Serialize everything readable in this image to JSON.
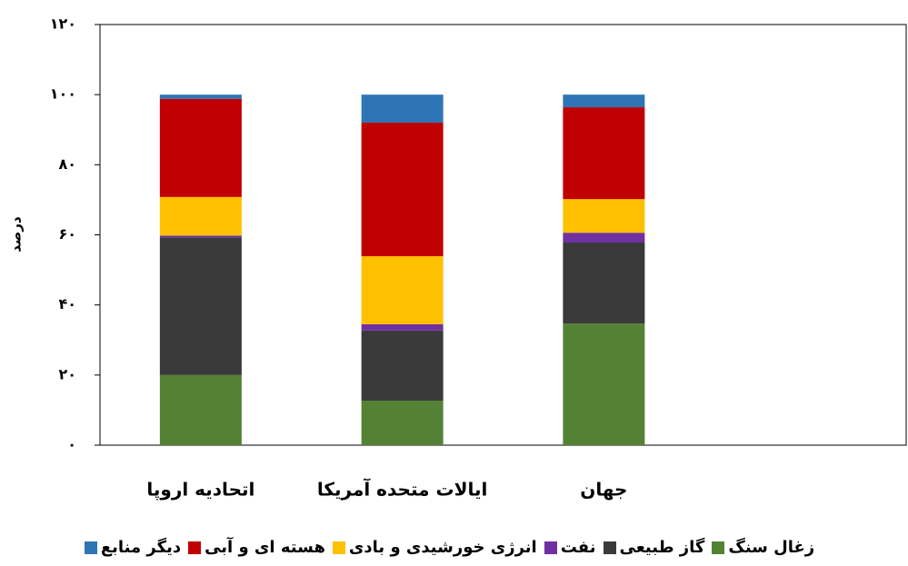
{
  "chart_data": {
    "type": "stacked_bar",
    "y_label": "درصد",
    "categories": [
      "اتحادیه اروپا",
      "ایالات متحده آمریکا",
      "جهان",
      null
    ],
    "series": [
      {
        "name": "زغال سنگ",
        "color": "#548235",
        "values": [
          20,
          12.7,
          34.7,
          null
        ]
      },
      {
        "name": "گاز طبیعی",
        "color": "#3a3a3a",
        "values": [
          39.3,
          20,
          23.1,
          null
        ]
      },
      {
        "name": "نفت",
        "color": "#7030a0",
        "values": [
          0.5,
          1.8,
          2.8,
          null
        ]
      },
      {
        "name": "انرژی خورشیدی و بادی",
        "color": "#ffc000",
        "values": [
          11,
          19.4,
          9.6,
          null
        ]
      },
      {
        "name": "هسته ای و آبی",
        "color": "#c00000",
        "values": [
          28,
          38.1,
          26.2,
          null
        ]
      },
      {
        "name": "دیگر منابع",
        "color": "#2e75b6",
        "values": [
          1.2,
          8,
          3.6,
          null
        ]
      }
    ],
    "ylim": [
      0,
      120
    ],
    "yticks": [
      {
        "value": 0,
        "label": "۰"
      },
      {
        "value": 20,
        "label": "۲۰"
      },
      {
        "value": 40,
        "label": "۴۰"
      },
      {
        "value": 60,
        "label": "۶۰"
      },
      {
        "value": 80,
        "label": "۸۰"
      },
      {
        "value": 100,
        "label": "۱۰۰"
      },
      {
        "value": 120,
        "label": "۱۲۰"
      }
    ],
    "legend": "bottom"
  }
}
